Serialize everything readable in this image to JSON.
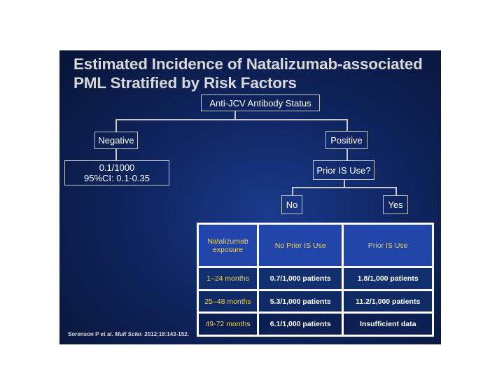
{
  "title_line1": "Estimated Incidence of Natalizumab-associated",
  "title_line2": "PML Stratified by Risk Factors",
  "root": "Anti-JCV Antibody Status",
  "negative": "Negative",
  "positive": "Positive",
  "negative_result_line1": "0.1/1000",
  "negative_result_line2": "95%CI: 0.1-0.35",
  "prior_is_question": "Prior IS Use?",
  "no": "No",
  "yes": "Yes",
  "table": {
    "header": [
      "Natalizumab exposure",
      "No Prior IS Use",
      "Prior IS Use"
    ],
    "rows": [
      [
        "1–24 months",
        "0.7/1,000 patients",
        "1.8/1,000 patients"
      ],
      [
        "25–48 months",
        "5.3/1,000 patients",
        "11.2/1,000 patients"
      ],
      [
        "49-72 months",
        "6.1/1,000 patients",
        "Insufficient data"
      ]
    ]
  },
  "citation_authors": "Sorenson P et al.",
  "citation_journal": "Mult Scler.",
  "citation_ref": "2012;18:143-152."
}
